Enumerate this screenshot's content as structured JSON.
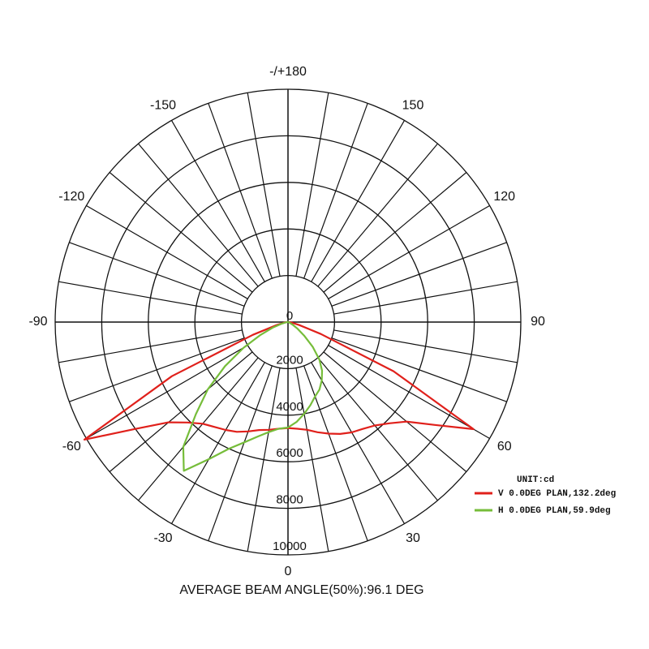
{
  "chart_data": {
    "type": "polar",
    "title": "AVERAGE BEAM ANGLE(50%):96.1 DEG",
    "unit_label": "UNIT:cd",
    "theta": [
      -90,
      -85,
      -80,
      -75,
      -70,
      -65,
      -60,
      -55,
      -50,
      -45,
      -40,
      -35,
      -30,
      -25,
      -20,
      -15,
      -10,
      -5,
      0,
      5,
      10,
      15,
      20,
      25,
      30,
      35,
      40,
      45,
      50,
      55,
      60,
      65,
      70,
      75,
      80,
      85,
      90
    ],
    "series": [
      {
        "name": "V 0.0DEG PLAN,132.2deg",
        "color": "#e0201b",
        "values": [
          50,
          100,
          200,
          500,
          1600,
          5500,
          10100,
          8000,
          6700,
          6100,
          5700,
          5500,
          5350,
          5200,
          5000,
          4800,
          4700,
          4600,
          4550,
          4600,
          4700,
          4900,
          5100,
          5300,
          5470,
          5600,
          5800,
          6150,
          6650,
          7700,
          9200,
          5000,
          1500,
          500,
          200,
          100,
          50
        ]
      },
      {
        "name": "H 0.0DEG PLAN,59.9deg",
        "color": "#76bd3a",
        "values": [
          0,
          50,
          100,
          300,
          700,
          1300,
          2200,
          3300,
          4500,
          5600,
          7000,
          7800,
          6800,
          6000,
          5500,
          5100,
          4800,
          4600,
          4530,
          4300,
          4000,
          3700,
          3400,
          3200,
          2900,
          2550,
          2100,
          1500,
          900,
          500,
          250,
          100,
          50,
          20,
          0,
          0,
          0
        ]
      }
    ],
    "rlim": [
      0,
      10000
    ],
    "rticks": [
      0,
      2000,
      4000,
      6000,
      8000,
      10000
    ],
    "thetaticks": [
      {
        "value": 180,
        "label": "-/+180"
      },
      150,
      120,
      90,
      60,
      30,
      0,
      -30,
      -60,
      -90,
      -120,
      -150
    ],
    "theta_grid_step": 10
  }
}
